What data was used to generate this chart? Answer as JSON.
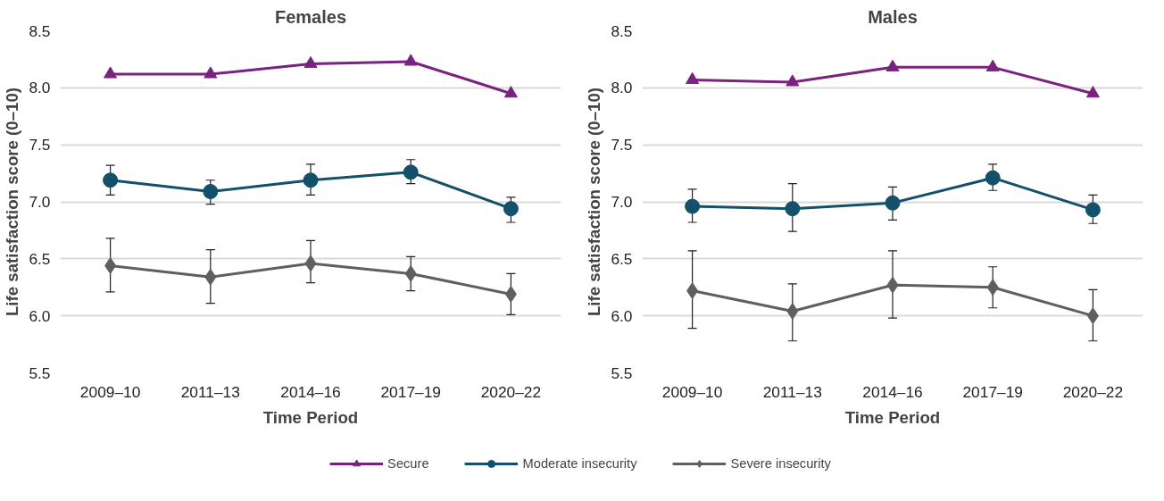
{
  "chart_data": [
    {
      "type": "line",
      "title": "Females",
      "xlabel": "Time Period",
      "ylabel": "Life satisfaction score (0–10)",
      "categories": [
        "2009–10",
        "2011–13",
        "2014–16",
        "2017–19",
        "2020–22"
      ],
      "ylim": [
        5.5,
        8.5
      ],
      "yticks": [
        {
          "value": 5.5,
          "label": "5.5"
        },
        {
          "value": 6,
          "label": "6.0"
        },
        {
          "value": 6.5,
          "label": "6.5"
        },
        {
          "value": 7,
          "label": "7.0"
        },
        {
          "value": 7.5,
          "label": "7.5"
        },
        {
          "value": 8,
          "label": "8.0"
        },
        {
          "value": 8.5,
          "label": "8.5"
        }
      ],
      "grid": "y",
      "legend": "bottom",
      "series": [
        {
          "name": "Secure",
          "color": "#7b2281",
          "marker": "triangle",
          "values": [
            8.12,
            8.12,
            8.21,
            8.23,
            7.95
          ]
        },
        {
          "name": "Moderate insecurity",
          "color": "#13506a",
          "marker": "circle",
          "values": [
            7.19,
            7.09,
            7.19,
            7.26,
            6.94
          ],
          "errors": [
            [
              7.06,
              7.32
            ],
            [
              6.98,
              7.19
            ],
            [
              7.06,
              7.33
            ],
            [
              7.16,
              7.37
            ],
            [
              6.82,
              7.04
            ]
          ]
        },
        {
          "name": "Severe insecurity",
          "color": "#5f5f5f",
          "marker": "diamond",
          "values": [
            6.44,
            6.34,
            6.46,
            6.37,
            6.19
          ],
          "errors": [
            [
              6.21,
              6.68
            ],
            [
              6.11,
              6.58
            ],
            [
              6.29,
              6.66
            ],
            [
              6.22,
              6.52
            ],
            [
              6.01,
              6.37
            ]
          ]
        }
      ]
    },
    {
      "type": "line",
      "title": "Males",
      "xlabel": "Time Period",
      "ylabel": "Life satisfaction score (0–10)",
      "categories": [
        "2009–10",
        "2011–13",
        "2014–16",
        "2017–19",
        "2020–22"
      ],
      "ylim": [
        5.5,
        8.5
      ],
      "yticks": [
        {
          "value": 5.5,
          "label": "5.5"
        },
        {
          "value": 6,
          "label": "6.0"
        },
        {
          "value": 6.5,
          "label": "6.5"
        },
        {
          "value": 7,
          "label": "7.0"
        },
        {
          "value": 7.5,
          "label": "7.5"
        },
        {
          "value": 8,
          "label": "8.0"
        },
        {
          "value": 8.5,
          "label": "8.5"
        }
      ],
      "grid": "y",
      "legend": "bottom",
      "series": [
        {
          "name": "Secure",
          "color": "#7b2281",
          "marker": "triangle",
          "values": [
            8.07,
            8.05,
            8.18,
            8.18,
            7.95
          ]
        },
        {
          "name": "Moderate insecurity",
          "color": "#13506a",
          "marker": "circle",
          "values": [
            6.96,
            6.94,
            6.99,
            7.21,
            6.93
          ],
          "errors": [
            [
              6.82,
              7.11
            ],
            [
              6.74,
              7.16
            ],
            [
              6.84,
              7.13
            ],
            [
              7.1,
              7.33
            ],
            [
              6.81,
              7.06
            ]
          ]
        },
        {
          "name": "Severe insecurity",
          "color": "#5f5f5f",
          "marker": "diamond",
          "values": [
            6.22,
            6.04,
            6.27,
            6.25,
            6.0
          ],
          "errors": [
            [
              5.89,
              6.57
            ],
            [
              5.78,
              6.28
            ],
            [
              5.98,
              6.57
            ],
            [
              6.07,
              6.43
            ],
            [
              5.78,
              6.23
            ]
          ]
        }
      ]
    }
  ]
}
